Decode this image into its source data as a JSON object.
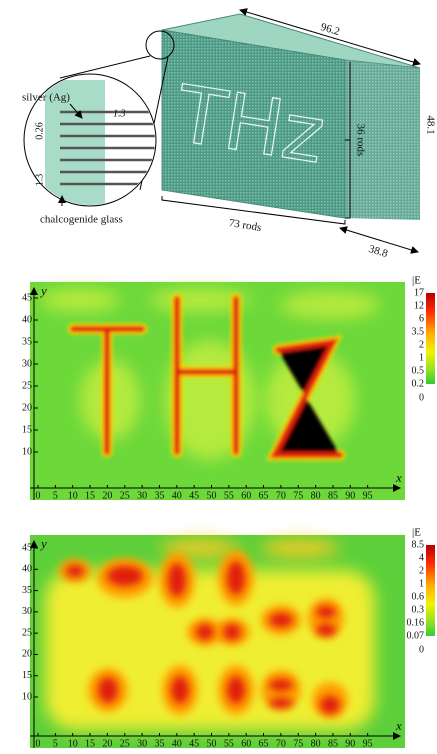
{
  "diagram": {
    "length": "96.2",
    "height": "48.1",
    "depth": "38.8",
    "rods_vertical": "36 rods",
    "rods_horizontal": "73 rods",
    "logo": "THz",
    "inset": {
      "metal": "silver (Ag)",
      "thickness": "0.26",
      "period": "1.3",
      "spacing": "1.3",
      "dielectric": "chalcogenide glass"
    }
  },
  "maps": [
    {
      "colorbar_label": "|E",
      "colorbar_ticks": [
        17,
        12,
        6,
        3.5,
        2,
        1,
        0.5,
        0.2,
        0
      ],
      "x_label": "x",
      "y_label": "y",
      "xticks": [
        0,
        5,
        10,
        15,
        20,
        25,
        30,
        35,
        40,
        45,
        50,
        55,
        60,
        65,
        70,
        75,
        80,
        85,
        90,
        95
      ],
      "yticks": [
        10,
        15,
        20,
        25,
        30,
        35,
        40,
        45
      ]
    },
    {
      "colorbar_label": "|E",
      "colorbar_ticks": [
        8.5,
        4,
        2,
        1,
        0.6,
        0.3,
        0.16,
        0.07,
        0
      ],
      "x_label": "x",
      "y_label": "y",
      "xticks": [
        0,
        5,
        10,
        15,
        20,
        25,
        30,
        35,
        40,
        45,
        50,
        55,
        60,
        65,
        70,
        75,
        80,
        85,
        90,
        95
      ],
      "yticks": [
        10,
        15,
        20,
        25,
        30,
        35,
        40,
        45
      ]
    }
  ]
}
